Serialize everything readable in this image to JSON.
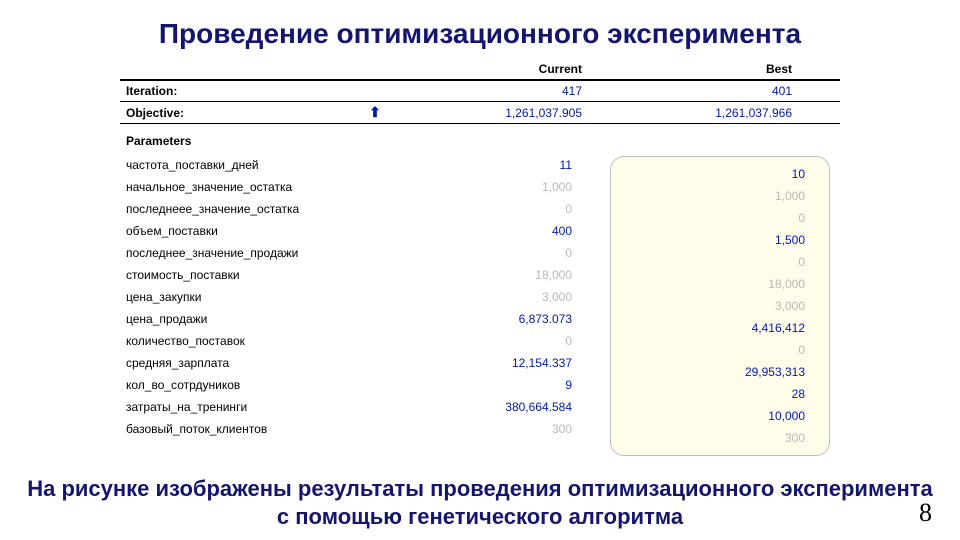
{
  "colors": {
    "title_text": "#16156d",
    "value_active": "#0018b0",
    "value_dim": "#b9b9b9",
    "best_box_bg": "#fffde9",
    "best_box_border": "#bdbdbd"
  },
  "title": "Проведение оптимизационного эксперимента",
  "columns": {
    "current": "Current",
    "best": "Best"
  },
  "iteration": {
    "label": "Iteration:",
    "current_value": "417",
    "best_value": "401"
  },
  "objective": {
    "label": "Objective:",
    "arrow": "⬆",
    "current_value": "1,261,037.905",
    "best_value": "1,261,037.966"
  },
  "parameters_header": "Parameters",
  "parameters": [
    {
      "name": "частота_поставки_дней",
      "current": "11",
      "best": "10",
      "cur_active": true,
      "best_active": true
    },
    {
      "name": "начальное_значение_остатка",
      "current": "1,000",
      "best": "1,000",
      "cur_active": false,
      "best_active": false
    },
    {
      "name": "последнеее_значение_остатка",
      "current": "0",
      "best": "0",
      "cur_active": false,
      "best_active": false
    },
    {
      "name": "объем_поставки",
      "current": "400",
      "best": "1,500",
      "cur_active": true,
      "best_active": true
    },
    {
      "name": "последнее_значение_продажи",
      "current": "0",
      "best": "0",
      "cur_active": false,
      "best_active": false
    },
    {
      "name": "стоимость_поставки",
      "current": "18,000",
      "best": "18,000",
      "cur_active": false,
      "best_active": false
    },
    {
      "name": "цена_закупки",
      "current": "3,000",
      "best": "3,000",
      "cur_active": false,
      "best_active": false
    },
    {
      "name": "цена_продажи",
      "current": "6,873.073",
      "best": "4,416,412",
      "cur_active": true,
      "best_active": true
    },
    {
      "name": "количество_поставок",
      "current": "0",
      "best": "0",
      "cur_active": false,
      "best_active": false
    },
    {
      "name": "средняя_зарплата",
      "current": "12,154.337",
      "best": "29,953,313",
      "cur_active": true,
      "best_active": true
    },
    {
      "name": "кол_во_сотрдуников",
      "current": "9",
      "best": "28",
      "cur_active": true,
      "best_active": true
    },
    {
      "name": "затраты_на_тренинги",
      "current": "380,664.584",
      "best": "10,000",
      "cur_active": true,
      "best_active": true
    },
    {
      "name": "базовый_поток_клиентов",
      "current": "300",
      "best": "300",
      "cur_active": false,
      "best_active": false
    }
  ],
  "caption": "На рисунке изображены результаты проведения оптимизационного эксперимента с помощью генетического алгоритма",
  "page_number": "8"
}
